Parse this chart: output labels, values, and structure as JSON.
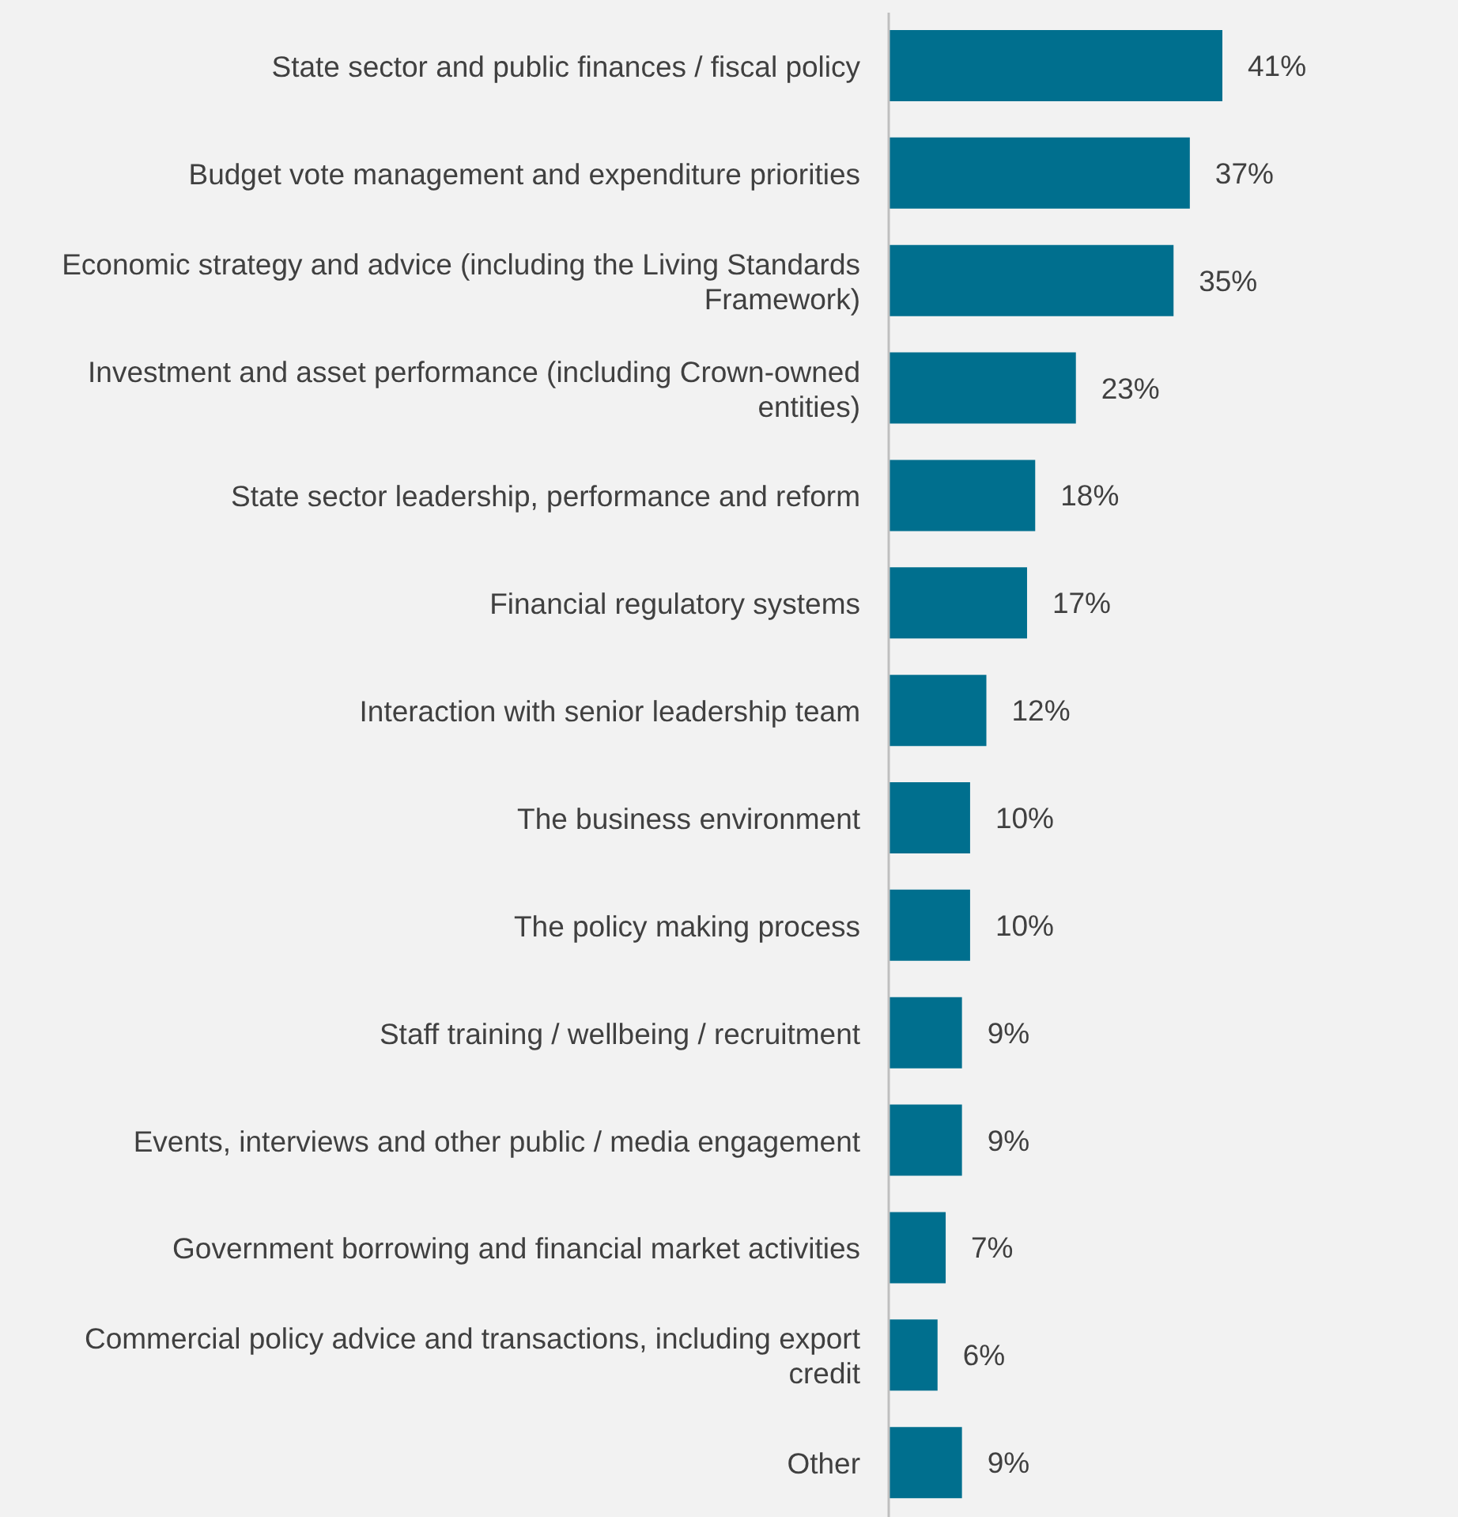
{
  "chart_data": {
    "type": "bar",
    "orientation": "horizontal",
    "categories": [
      "State sector and public finances / fiscal policy",
      "Budget vote management and expenditure priorities",
      "Economic strategy and advice (including the Living Standards Framework)",
      "Investment and asset performance (including Crown-owned entities)",
      "State sector leadership, performance and reform",
      "Financial regulatory systems",
      "Interaction with senior leadership team",
      "The business environment",
      "The policy making process",
      "Staff training / wellbeing / recruitment",
      "Events, interviews and other public / media engagement",
      "Government borrowing and financial market activities",
      "Commercial policy advice and transactions, including export credit",
      "Other"
    ],
    "values": [
      41,
      37,
      35,
      23,
      18,
      17,
      12,
      10,
      10,
      9,
      9,
      7,
      6,
      9
    ],
    "value_labels": [
      "41%",
      "37%",
      "35%",
      "23%",
      "18%",
      "17%",
      "12%",
      "10%",
      "10%",
      "9%",
      "9%",
      "7%",
      "6%",
      "9%"
    ],
    "color": "#006f8e",
    "grid": false,
    "legend": false
  }
}
